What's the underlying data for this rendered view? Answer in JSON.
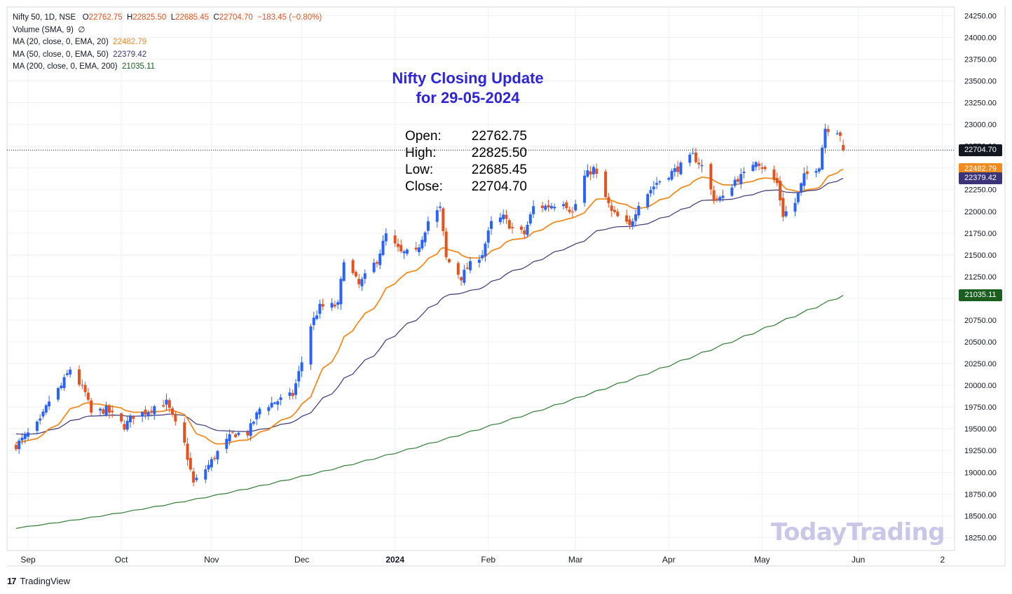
{
  "legend": {
    "symbol_line": "Nifty 50, 1D, NSE",
    "o_label": "O",
    "o_value": "22762.75",
    "h_label": "H",
    "h_value": "22825.50",
    "l_label": "L",
    "l_value": "22685.45",
    "c_label": "C",
    "c_value": "22704.70",
    "change": "−183.45 (−0.80%)",
    "volume": "Volume (SMA, 9)",
    "volume_icon": "∅",
    "ma20_label": "MA (20, close, 0, EMA, 20)",
    "ma20_value": "22482.79",
    "ma50_label": "MA (50, close, 0, EMA, 50)",
    "ma50_value": "22379.42",
    "ma200_label": "MA (200, close, 0, EMA, 200)",
    "ma200_value": "21035.11"
  },
  "annotation": {
    "title_line1": "Nifty Closing Update",
    "title_line2": "for 29-05-2024",
    "open_label": "Open:",
    "open_value": "22762.75",
    "high_label": "High:",
    "high_value": "22825.50",
    "low_label": "Low:",
    "low_value": "22685.45",
    "close_label": "Close:",
    "close_value": "22704.70"
  },
  "watermark": "TodayTrading",
  "brand": {
    "logo": "17",
    "name": "TradingView"
  },
  "price_labels": {
    "close": "22704.70",
    "ma20": "22482.79",
    "ma50": "22379.42",
    "ma200": "21035.11"
  },
  "colors": {
    "up": "#2962ff",
    "down": "#e4521d",
    "ma20": "#f28b1e",
    "ma50": "#3c3479",
    "ma200": "#2e7d32",
    "title": "#2d25d6",
    "grid": "#eef0f3"
  },
  "chart_data": {
    "type": "candlestick",
    "title": "Nifty 50, 1D, NSE",
    "y_ticks": [
      "24250.00",
      "24000.00",
      "23750.00",
      "23500.00",
      "23250.00",
      "23000.00",
      "22750.00",
      "22500.00",
      "22250.00",
      "22000.00",
      "21750.00",
      "21500.00",
      "21250.00",
      "21000.00",
      "20750.00",
      "20500.00",
      "20250.00",
      "20000.00",
      "19750.00",
      "19500.00",
      "19250.00",
      "19000.00",
      "18750.00",
      "18500.00",
      "18250.00"
    ],
    "ylim": [
      18100,
      24350
    ],
    "x_tick_labels": [
      "Sep",
      "Oct",
      "Nov",
      "Dec",
      "2024",
      "Feb",
      "Mar",
      "Apr",
      "May",
      "Jun",
      "2"
    ],
    "x_tick_dates": [
      "2023-09-01",
      "2023-10-02",
      "2023-11-01",
      "2023-12-01",
      "2024-01-01",
      "2024-02-01",
      "2024-03-01",
      "2024-04-01",
      "2024-05-02",
      "2024-06-03",
      "2024-07-01"
    ],
    "xlim": [
      "2023-08-25",
      "2024-07-05"
    ],
    "last_date": "2024-05-29",
    "anchors": [
      [
        "2023-08-28",
        19310
      ],
      [
        "2023-09-01",
        19440
      ],
      [
        "2023-09-05",
        19580
      ],
      [
        "2023-09-08",
        19820
      ],
      [
        "2023-09-12",
        19990
      ],
      [
        "2023-09-15",
        20190
      ],
      [
        "2023-09-20",
        19910
      ],
      [
        "2023-09-22",
        19680
      ],
      [
        "2023-09-27",
        19720
      ],
      [
        "2023-10-03",
        19530
      ],
      [
        "2023-10-06",
        19650
      ],
      [
        "2023-10-10",
        19690
      ],
      [
        "2023-10-13",
        19760
      ],
      [
        "2023-10-17",
        19800
      ],
      [
        "2023-10-20",
        19550
      ],
      [
        "2023-10-23",
        19320
      ],
      [
        "2023-10-26",
        18870
      ],
      [
        "2023-10-31",
        19080
      ],
      [
        "2023-11-03",
        19230
      ],
      [
        "2023-11-08",
        19440
      ],
      [
        "2023-11-13",
        19450
      ],
      [
        "2023-11-17",
        19730
      ],
      [
        "2023-11-22",
        19810
      ],
      [
        "2023-11-28",
        19890
      ],
      [
        "2023-12-01",
        20270
      ],
      [
        "2023-12-04",
        20690
      ],
      [
        "2023-12-07",
        20900
      ],
      [
        "2023-12-13",
        20920
      ],
      [
        "2023-12-15",
        21460
      ],
      [
        "2023-12-20",
        21150
      ],
      [
        "2023-12-26",
        21440
      ],
      [
        "2023-12-29",
        21730
      ],
      [
        "2024-01-03",
        21520
      ],
      [
        "2024-01-08",
        21520
      ],
      [
        "2024-01-12",
        21890
      ],
      [
        "2024-01-16",
        22030
      ],
      [
        "2024-01-18",
        21460
      ],
      [
        "2024-01-23",
        21240
      ],
      [
        "2024-01-25",
        21350
      ],
      [
        "2024-01-30",
        21520
      ],
      [
        "2024-02-02",
        21860
      ],
      [
        "2024-02-06",
        21930
      ],
      [
        "2024-02-09",
        21800
      ],
      [
        "2024-02-13",
        21740
      ],
      [
        "2024-02-16",
        22050
      ],
      [
        "2024-02-21",
        22060
      ],
      [
        "2024-02-26",
        22120
      ],
      [
        "2024-02-29",
        21980
      ],
      [
        "2024-03-04",
        22400
      ],
      [
        "2024-03-07",
        22490
      ],
      [
        "2024-03-13",
        21990
      ],
      [
        "2024-03-19",
        21820
      ],
      [
        "2024-03-22",
        22100
      ],
      [
        "2024-03-28",
        22330
      ],
      [
        "2024-04-02",
        22450
      ],
      [
        "2024-04-05",
        22520
      ],
      [
        "2024-04-09",
        22640
      ],
      [
        "2024-04-12",
        22520
      ],
      [
        "2024-04-16",
        22150
      ],
      [
        "2024-04-19",
        22150
      ],
      [
        "2024-04-23",
        22360
      ],
      [
        "2024-04-26",
        22420
      ],
      [
        "2024-04-30",
        22600
      ],
      [
        "2024-05-03",
        22470
      ],
      [
        "2024-05-07",
        22320
      ],
      [
        "2024-05-09",
        21960
      ],
      [
        "2024-05-13",
        22100
      ],
      [
        "2024-05-16",
        22400
      ],
      [
        "2024-05-21",
        22530
      ],
      [
        "2024-05-23",
        22960
      ],
      [
        "2024-05-27",
        22930
      ],
      [
        "2024-05-28",
        22890
      ],
      [
        "2024-05-29",
        22705
      ]
    ],
    "last_candle": {
      "date": "2024-05-29",
      "open": 22762.75,
      "high": 22825.5,
      "low": 22685.45,
      "close": 22704.7
    },
    "series": [
      {
        "name": "MA (20, close, 0, EMA, 20)",
        "period": 20,
        "last": 22482.79
      },
      {
        "name": "MA (50, close, 0, EMA, 50)",
        "period": 50,
        "last": 22379.42
      },
      {
        "name": "MA (200, close, 0, EMA, 200)",
        "period": 200,
        "last": 21035.11
      }
    ]
  }
}
